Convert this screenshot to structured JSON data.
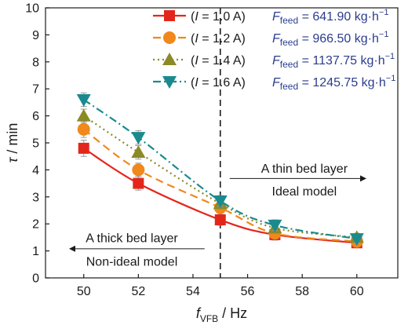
{
  "chart_data": {
    "type": "line",
    "xlabel_italic": "f",
    "xlabel_sub": "VFB",
    "xlabel_unit": " / Hz",
    "ylabel_italic": "τ",
    "ylabel_unit": " / min",
    "xlim": [
      48.6,
      61.5
    ],
    "ylim": [
      0,
      10
    ],
    "xticks": [
      50,
      52,
      54,
      56,
      58,
      60
    ],
    "yticks": [
      0,
      1,
      2,
      3,
      4,
      5,
      6,
      7,
      8,
      9,
      10
    ],
    "vline_x": 55,
    "series": [
      {
        "name": "(I = 1.0 A)",
        "current_prefix": "(",
        "current_italic": "I",
        "current_rest": " = 1.0 A)",
        "flow_italic": "F",
        "flow_sub": "feed",
        "flow_value": " = 641.90 kg·h",
        "flow_exp": "−1",
        "color": "#e3261b",
        "marker": "square",
        "dash": "",
        "x": [
          50,
          52,
          55,
          57,
          60
        ],
        "y": [
          4.8,
          3.5,
          2.15,
          1.6,
          1.3
        ],
        "err": [
          0.3,
          0.25,
          0.2,
          0.2,
          0.15
        ]
      },
      {
        "name": "(I = 1.2 A)",
        "current_prefix": "(",
        "current_italic": "I",
        "current_rest": " = 1.2 A)",
        "flow_italic": "F",
        "flow_sub": "feed",
        "flow_value": " = 966.50 kg·h",
        "flow_exp": "−1",
        "color": "#f0881c",
        "marker": "circle",
        "dash": "10,6",
        "x": [
          50,
          52,
          55,
          57,
          60
        ],
        "y": [
          5.5,
          4.0,
          2.6,
          1.65,
          1.35
        ],
        "err": [
          0.3,
          0.25,
          0.2,
          0.15,
          0.15
        ]
      },
      {
        "name": "(I = 1.4 A)",
        "current_prefix": "(",
        "current_italic": "I",
        "current_rest": " = 1.4 A)",
        "flow_italic": "F",
        "flow_sub": "feed",
        "flow_value": " = 1137.75 kg·h",
        "flow_exp": "−1",
        "color": "#8c8a26",
        "marker": "triangle-up",
        "dash": "2,4",
        "x": [
          50,
          52,
          55,
          57,
          60
        ],
        "y": [
          6.0,
          4.65,
          2.75,
          1.85,
          1.5
        ],
        "err": [
          0.25,
          0.25,
          0.2,
          0.2,
          0.15
        ]
      },
      {
        "name": "(I = 1.6 A)",
        "current_prefix": "(",
        "current_italic": "I",
        "current_rest": " = 1.6 A)",
        "flow_italic": "F",
        "flow_sub": "feed",
        "flow_value": " = 1245.75 kg·h",
        "flow_exp": "−1",
        "color": "#1b8a8e",
        "marker": "triangle-down",
        "dash": "10,4,2,4",
        "x": [
          50,
          52,
          55,
          57,
          60
        ],
        "y": [
          6.6,
          5.2,
          2.85,
          1.95,
          1.45
        ],
        "err": [
          0.25,
          0.25,
          0.2,
          0.2,
          0.15
        ]
      }
    ],
    "annotations": {
      "right_top": "A thin bed layer",
      "right_bottom": "Ideal model",
      "left_top": "A thick bed layer",
      "left_bottom": "Non-ideal model"
    },
    "legend_position": "top-right",
    "flow_text_color": "#2b3d8f",
    "grid": false
  }
}
